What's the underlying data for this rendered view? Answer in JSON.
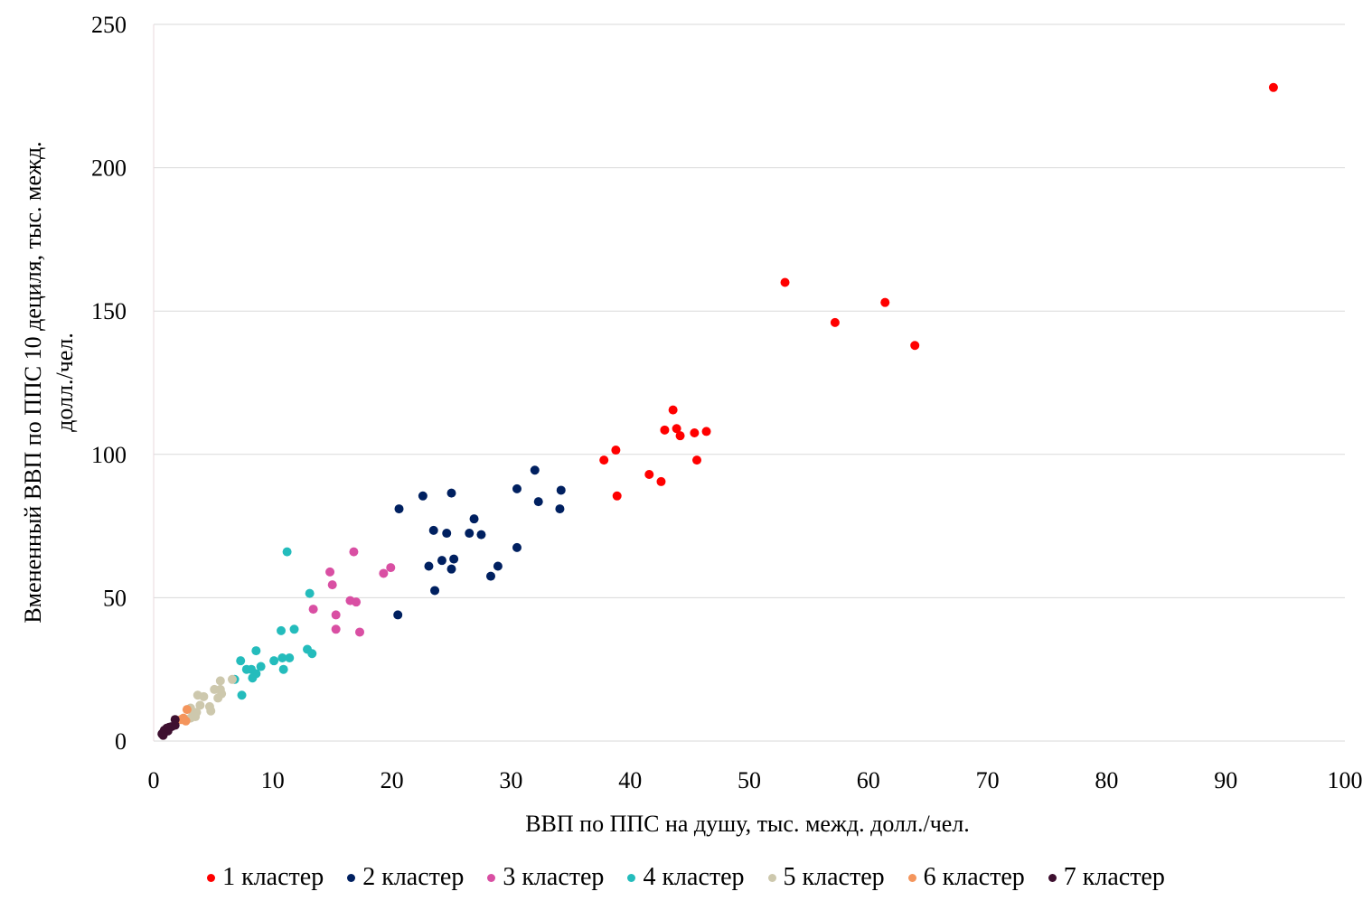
{
  "chart_data": {
    "type": "scatter",
    "xlabel": "ВВП по ППС на душу, тыс. межд. долл./чел.",
    "ylabel_line1": "Вмененный ВВП по ППС 10 дециля, тыс. межд.",
    "ylabel_line2": "долл./чел.",
    "xlim": [
      0,
      100
    ],
    "ylim": [
      0,
      250
    ],
    "xticks": [
      0,
      10,
      20,
      30,
      40,
      50,
      60,
      70,
      80,
      90,
      100
    ],
    "yticks": [
      0,
      50,
      100,
      150,
      200,
      250
    ],
    "grid": "horizontal",
    "legend_position": "bottom",
    "series": [
      {
        "name": "1 кластер",
        "color": "#ff0000",
        "points": [
          [
            94,
            228
          ],
          [
            53,
            160
          ],
          [
            61.4,
            153
          ],
          [
            57.2,
            146
          ],
          [
            63.9,
            138
          ],
          [
            43.6,
            115.5
          ],
          [
            42.9,
            108.5
          ],
          [
            43.9,
            109
          ],
          [
            44.2,
            106.5
          ],
          [
            45.4,
            107.5
          ],
          [
            46.4,
            108
          ],
          [
            38.8,
            101.5
          ],
          [
            37.8,
            98
          ],
          [
            45.6,
            98
          ],
          [
            41.6,
            93
          ],
          [
            42.6,
            90.5
          ],
          [
            38.9,
            85.5
          ]
        ]
      },
      {
        "name": "2 кластер",
        "color": "#002060",
        "points": [
          [
            32,
            94.5
          ],
          [
            30.5,
            88
          ],
          [
            34.2,
            87.5
          ],
          [
            25,
            86.5
          ],
          [
            22.6,
            85.5
          ],
          [
            32.3,
            83.5
          ],
          [
            34.1,
            81
          ],
          [
            20.6,
            81
          ],
          [
            26.9,
            77.5
          ],
          [
            23.5,
            73.5
          ],
          [
            24.6,
            72.5
          ],
          [
            26.5,
            72.5
          ],
          [
            27.5,
            72
          ],
          [
            30.5,
            67.5
          ],
          [
            25.2,
            63.5
          ],
          [
            24.2,
            63
          ],
          [
            23.1,
            61
          ],
          [
            28.9,
            61
          ],
          [
            25,
            60
          ],
          [
            28.3,
            57.5
          ],
          [
            23.6,
            52.5
          ],
          [
            20.5,
            44
          ]
        ]
      },
      {
        "name": "3 кластер",
        "color": "#d94fa3",
        "points": [
          [
            16.8,
            66
          ],
          [
            19.9,
            60.5
          ],
          [
            19.3,
            58.5
          ],
          [
            14.8,
            59
          ],
          [
            15,
            54.5
          ],
          [
            16.5,
            49
          ],
          [
            17,
            48.5
          ],
          [
            13.4,
            46
          ],
          [
            15.3,
            44
          ],
          [
            15.3,
            39
          ],
          [
            17.3,
            38
          ]
        ]
      },
      {
        "name": "4 кластер",
        "color": "#24bcbc",
        "points": [
          [
            11.2,
            66
          ],
          [
            13.1,
            51.5
          ],
          [
            11.8,
            39
          ],
          [
            10.7,
            38.5
          ],
          [
            12.9,
            32
          ],
          [
            13.3,
            30.5
          ],
          [
            8.6,
            31.5
          ],
          [
            10.8,
            29
          ],
          [
            11.4,
            29
          ],
          [
            10.1,
            28
          ],
          [
            7.3,
            28
          ],
          [
            9,
            26
          ],
          [
            8.2,
            25
          ],
          [
            7.8,
            25
          ],
          [
            10.9,
            25
          ],
          [
            8.6,
            23.5
          ],
          [
            8.3,
            22
          ],
          [
            6.8,
            21.5
          ],
          [
            7.4,
            16
          ]
        ]
      },
      {
        "name": "5 кластер",
        "color": "#cdc8ad",
        "points": [
          [
            5.6,
            21
          ],
          [
            6.6,
            21.5
          ],
          [
            5.1,
            18
          ],
          [
            5.6,
            18
          ],
          [
            5.7,
            16.5
          ],
          [
            4.2,
            15.5
          ],
          [
            3.7,
            16
          ],
          [
            5.4,
            15
          ],
          [
            3.9,
            12.5
          ],
          [
            4.7,
            12
          ],
          [
            4.8,
            10.5
          ],
          [
            3.1,
            11.5
          ],
          [
            3.6,
            10
          ],
          [
            3.3,
            9
          ],
          [
            3.5,
            8.5
          ],
          [
            3.1,
            8
          ]
        ]
      },
      {
        "name": "6 кластер",
        "color": "#f4955c",
        "points": [
          [
            2.8,
            11
          ],
          [
            2.5,
            8
          ],
          [
            2.3,
            7.5
          ],
          [
            2.7,
            7
          ]
        ]
      },
      {
        "name": "7 кластер",
        "color": "#3e1030",
        "points": [
          [
            1.8,
            7.5
          ],
          [
            1.8,
            5.5
          ],
          [
            1.5,
            5
          ],
          [
            1.3,
            4.8
          ],
          [
            1.1,
            4.5
          ],
          [
            0.9,
            3.8
          ],
          [
            1.2,
            3.5
          ],
          [
            0.8,
            3
          ],
          [
            0.7,
            2.5
          ],
          [
            0.8,
            2
          ]
        ]
      }
    ]
  }
}
